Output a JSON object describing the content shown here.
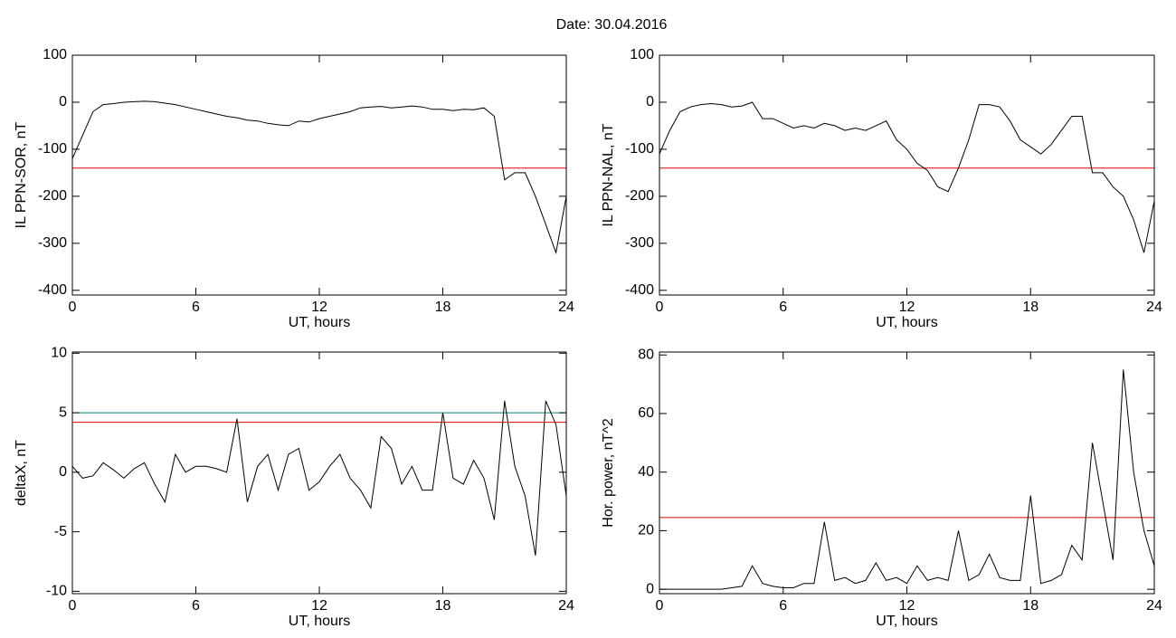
{
  "title": "Date:  30.04.2016",
  "chart_data": [
    {
      "type": "line",
      "ylabel": "IL PPN-SOR, nT",
      "xlabel": "UT, hours",
      "xlim": [
        0,
        24
      ],
      "xticks": [
        0,
        6,
        12,
        18,
        24
      ],
      "ylim": [
        -410,
        100
      ],
      "yticks": [
        100,
        0,
        -100,
        -200,
        -300,
        -400
      ],
      "x": [
        0,
        0.5,
        1,
        1.5,
        2,
        2.5,
        3,
        3.5,
        4,
        4.5,
        5,
        5.5,
        6,
        6.5,
        7,
        7.5,
        8,
        8.5,
        9,
        9.5,
        10,
        10.5,
        11,
        11.5,
        12,
        12.5,
        13,
        13.5,
        14,
        14.5,
        15,
        15.5,
        16,
        16.5,
        17,
        17.5,
        18,
        18.5,
        19,
        19.5,
        20,
        20.5,
        21,
        21.5,
        22,
        22.5,
        23,
        23.5,
        24
      ],
      "series": [
        {
          "color": "#000000",
          "values": [
            -120,
            -70,
            -20,
            -5,
            -3,
            0,
            1,
            2,
            1,
            -2,
            -5,
            -10,
            -15,
            -20,
            -25,
            -30,
            -33,
            -38,
            -40,
            -45,
            -48,
            -50,
            -40,
            -42,
            -35,
            -30,
            -25,
            -20,
            -12,
            -10,
            -9,
            -12,
            -10,
            -8,
            -10,
            -15,
            -15,
            -18,
            -15,
            -16,
            -12,
            -30,
            -165,
            -150,
            -150,
            -200,
            -260,
            -320,
            -200
          ]
        }
      ],
      "hlines": [
        {
          "value": -140,
          "color": "#e00000"
        }
      ]
    },
    {
      "type": "line",
      "ylabel": "IL PPN-NAL, nT",
      "xlabel": "UT, hours",
      "xlim": [
        0,
        24
      ],
      "xticks": [
        0,
        6,
        12,
        18,
        24
      ],
      "ylim": [
        -410,
        100
      ],
      "yticks": [
        100,
        0,
        -100,
        -200,
        -300,
        -400
      ],
      "x": [
        0,
        0.5,
        1,
        1.5,
        2,
        2.5,
        3,
        3.5,
        4,
        4.5,
        5,
        5.5,
        6,
        6.5,
        7,
        7.5,
        8,
        8.5,
        9,
        9.5,
        10,
        10.5,
        11,
        11.5,
        12,
        12.5,
        13,
        13.5,
        14,
        14.5,
        15,
        15.5,
        16,
        16.5,
        17,
        17.5,
        18,
        18.5,
        19,
        19.5,
        20,
        20.5,
        21,
        21.5,
        22,
        22.5,
        23,
        23.5,
        24
      ],
      "series": [
        {
          "color": "#000000",
          "values": [
            -110,
            -60,
            -20,
            -10,
            -5,
            -3,
            -5,
            -10,
            -8,
            0,
            -35,
            -35,
            -45,
            -55,
            -50,
            -55,
            -45,
            -50,
            -60,
            -55,
            -60,
            -50,
            -40,
            -80,
            -100,
            -130,
            -145,
            -180,
            -190,
            -140,
            -80,
            -5,
            -5,
            -10,
            -40,
            -80,
            -95,
            -110,
            -90,
            -60,
            -30,
            -30,
            -150,
            -150,
            -180,
            -200,
            -250,
            -320,
            -210
          ]
        }
      ],
      "hlines": [
        {
          "value": -140,
          "color": "#e00000"
        }
      ]
    },
    {
      "type": "line",
      "ylabel": "deltaX, nT",
      "xlabel": "UT, hours",
      "xlim": [
        0,
        24
      ],
      "xticks": [
        0,
        6,
        12,
        18,
        24
      ],
      "ylim": [
        -10.2,
        10.1
      ],
      "yticks": [
        10,
        5,
        0,
        -5,
        -10
      ],
      "x": [
        0,
        0.5,
        1,
        1.5,
        2,
        2.5,
        3,
        3.5,
        4,
        4.5,
        5,
        5.5,
        6,
        6.5,
        7,
        7.5,
        8,
        8.5,
        9,
        9.5,
        10,
        10.5,
        11,
        11.5,
        12,
        12.5,
        13,
        13.5,
        14,
        14.5,
        15,
        15.5,
        16,
        16.5,
        17,
        17.5,
        18,
        18.5,
        19,
        19.5,
        20,
        20.5,
        21,
        21.5,
        22,
        22.5,
        23,
        23.5,
        24
      ],
      "series": [
        {
          "color": "#000000",
          "values": [
            0.5,
            -0.5,
            -0.3,
            0.8,
            0.2,
            -0.5,
            0.3,
            0.8,
            -1,
            -2.5,
            1.5,
            0,
            0.5,
            0.5,
            0.3,
            0,
            4.5,
            -2.5,
            0.5,
            1.5,
            -1.5,
            1.5,
            2,
            -1.5,
            -0.8,
            0.5,
            1.5,
            -0.5,
            -1.5,
            -3,
            3,
            2,
            -1,
            0.5,
            -1.5,
            -1.5,
            5,
            -0.5,
            -1,
            1,
            -0.5,
            -4,
            6,
            0.5,
            -2,
            -7,
            6,
            4,
            -2
          ]
        }
      ],
      "hlines": [
        {
          "value": 5.0,
          "color": "#008080"
        },
        {
          "value": 4.2,
          "color": "#e00000"
        }
      ]
    },
    {
      "type": "line",
      "ylabel": "Hor. power, nT^2",
      "xlabel": "UT, hours",
      "xlim": [
        0,
        24
      ],
      "xticks": [
        0,
        6,
        12,
        18,
        24
      ],
      "ylim": [
        -1.5,
        81
      ],
      "yticks": [
        80,
        60,
        40,
        20,
        0
      ],
      "x": [
        0,
        0.5,
        1,
        1.5,
        2,
        2.5,
        3,
        3.5,
        4,
        4.5,
        5,
        5.5,
        6,
        6.5,
        7,
        7.5,
        8,
        8.5,
        9,
        9.5,
        10,
        10.5,
        11,
        11.5,
        12,
        12.5,
        13,
        13.5,
        14,
        14.5,
        15,
        15.5,
        16,
        16.5,
        17,
        17.5,
        18,
        18.5,
        19,
        19.5,
        20,
        20.5,
        21,
        21.5,
        22,
        22.5,
        23,
        23.5,
        24
      ],
      "series": [
        {
          "color": "#000000",
          "values": [
            0,
            0,
            0,
            0,
            0,
            0,
            0,
            0.5,
            1,
            8,
            2,
            1,
            0.5,
            0.5,
            2,
            2,
            23,
            3,
            4,
            2,
            3,
            9,
            3,
            4,
            2,
            8,
            3,
            4,
            3,
            20,
            3,
            5,
            12,
            4,
            3,
            3,
            32,
            2,
            3,
            5,
            15,
            10,
            50,
            30,
            10,
            75,
            40,
            20,
            8
          ]
        }
      ],
      "hlines": [
        {
          "value": 24.5,
          "color": "#e00000"
        }
      ]
    }
  ]
}
